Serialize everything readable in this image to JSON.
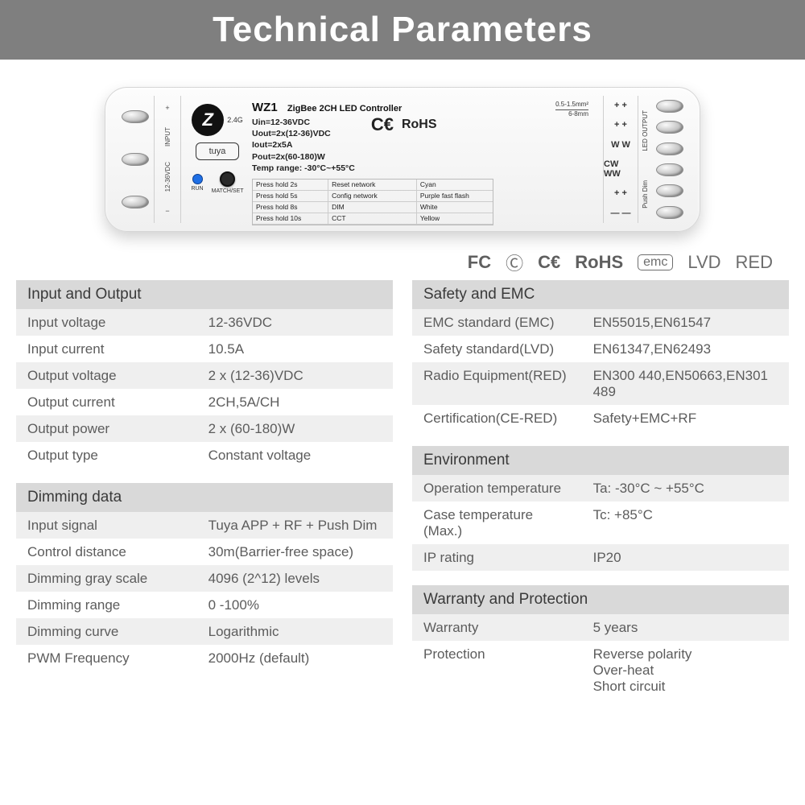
{
  "page_title": "Technical Parameters",
  "device": {
    "model": "WZ1",
    "subtitle": "ZigBee 2CH LED Controller",
    "spec_lines": [
      "Uin=12-36VDC",
      "Uout=2x(12-36)VDC",
      "Iout=2x5A",
      "Pout=2x(60-180)W",
      "Temp range: -30°C~+55°C"
    ],
    "inline_cert_ce": "C€",
    "inline_cert_rohs": "RoHS",
    "wire_top": "0.5-1.5mm²",
    "wire_bottom": "6-8mm",
    "ghz": "2.4G",
    "tuya": "tuya",
    "run_label": "RUN",
    "match_label": "MATCH/SET",
    "left_terminal_heading": "INPUT",
    "left_terminal_sub": "12-36VDC",
    "right_led_heading": "LED OUTPUT",
    "right_push_heading": "Push Dim",
    "mini_table": [
      [
        "Press hold 2s",
        "Reset network",
        "Cyan"
      ],
      [
        "Press hold 5s",
        "Config network",
        "Purple fast flash"
      ],
      [
        "Press hold 8s",
        "DIM",
        "White"
      ],
      [
        "Press hold 10s",
        "CCT",
        "Yellow"
      ]
    ],
    "right_rows": [
      "+ +",
      "+ +",
      "W W",
      "CW WW",
      "+ +",
      "— —"
    ]
  },
  "cert_strip": {
    "fc": "FC",
    "cdot": "Ⓒ",
    "ce": "C€",
    "rohs": "RoHS",
    "emc": "emc",
    "lvd": "LVD",
    "red": "RED"
  },
  "sections": {
    "io": {
      "title": "Input and Output",
      "rows": [
        [
          "Input voltage",
          "12-36VDC"
        ],
        [
          "Input current",
          "10.5A"
        ],
        [
          "Output voltage",
          "2 x (12-36)VDC"
        ],
        [
          "Output current",
          "2CH,5A/CH"
        ],
        [
          "Output power",
          "2 x (60-180)W"
        ],
        [
          "Output type",
          "Constant voltage"
        ]
      ]
    },
    "dimming": {
      "title": "Dimming data",
      "rows": [
        [
          "Input signal",
          "Tuya APP + RF + Push Dim"
        ],
        [
          "Control distance",
          "30m(Barrier-free space)"
        ],
        [
          "Dimming gray scale",
          "4096 (2^12) levels"
        ],
        [
          "Dimming range",
          "0 -100%"
        ],
        [
          "Dimming curve",
          "Logarithmic"
        ],
        [
          "PWM Frequency",
          "2000Hz (default)"
        ]
      ]
    },
    "safety": {
      "title": "Safety and EMC",
      "rows": [
        [
          "EMC standard (EMC)",
          "EN55015,EN61547"
        ],
        [
          "Safety standard(LVD)",
          "EN61347,EN62493"
        ],
        [
          "Radio Equipment(RED)",
          "EN300 440,EN50663,EN301 489"
        ],
        [
          "Certification(CE-RED)",
          "Safety+EMC+RF"
        ]
      ]
    },
    "env": {
      "title": "Environment",
      "rows": [
        [
          "Operation temperature",
          "Ta: -30°C ~ +55°C"
        ],
        [
          "Case temperature (Max.)",
          "Tc: +85°C"
        ],
        [
          "IP rating",
          "IP20"
        ]
      ]
    },
    "warranty": {
      "title": "Warranty and Protection",
      "rows": [
        [
          "Warranty",
          "5 years"
        ],
        [
          "Protection",
          "Reverse polarity\nOver-heat\nShort circuit"
        ]
      ]
    }
  }
}
